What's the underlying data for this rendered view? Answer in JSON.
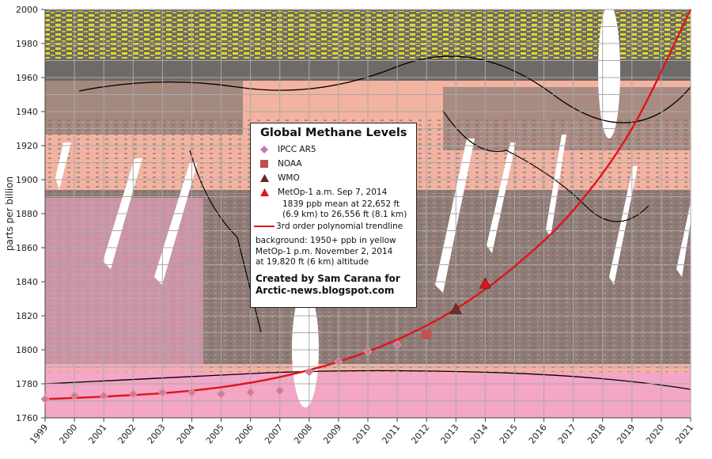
{
  "chart_data": {
    "type": "scatter",
    "title": "Global Methane Levels",
    "xlabel": "",
    "ylabel": "parts per billion",
    "xlim": [
      1999,
      2021
    ],
    "ylim": [
      1760,
      2000
    ],
    "x_ticks": [
      "1999",
      "2000",
      "2001",
      "2002",
      "2003",
      "2004",
      "2005",
      "2006",
      "2007",
      "2008",
      "2009",
      "2010",
      "2011",
      "2012",
      "2013",
      "2014",
      "2015",
      "2016",
      "2017",
      "2018",
      "2019",
      "2020",
      "2021"
    ],
    "y_ticks": [
      "1760",
      "1780",
      "1800",
      "1820",
      "1840",
      "1860",
      "1880",
      "1900",
      "1920",
      "1940",
      "1960",
      "1980",
      "2000"
    ],
    "grid": true,
    "legend_position": "center-left overlay box",
    "series": [
      {
        "name": "IPCC AR5",
        "marker": "diamond",
        "color": "#c07ab8",
        "x": [
          1999,
          2000,
          2001,
          2002,
          2003,
          2004,
          2005,
          2006,
          2007,
          2008,
          2009,
          2010,
          2011
        ],
        "y": [
          1771,
          1773,
          1773,
          1774,
          1775,
          1775,
          1774,
          1775,
          1776,
          1787,
          1793,
          1799,
          1803
        ]
      },
      {
        "name": "NOAA",
        "marker": "square",
        "color": "#c0504d",
        "x": [
          2012
        ],
        "y": [
          1809
        ]
      },
      {
        "name": "WMO",
        "marker": "triangle",
        "color": "#7a2a2a",
        "x": [
          2013
        ],
        "y": [
          1824
        ]
      },
      {
        "name": "MetOp-1 a.m. Sep 7, 2014",
        "marker": "triangle",
        "color": "#e0141c",
        "x": [
          2014
        ],
        "y": [
          1839
        ]
      },
      {
        "name": "3rd order polynomial trendline",
        "type": "line",
        "color": "#e0141c",
        "x": [
          1999,
          2001,
          2003,
          2005,
          2007,
          2009,
          2011,
          2013,
          2015,
          2017,
          2019,
          2021
        ],
        "y": [
          1771,
          1772.5,
          1774.5,
          1778,
          1784,
          1793,
          1806,
          1824,
          1849,
          1882,
          1930,
          2000
        ]
      }
    ],
    "annotations": [
      "1839 ppb mean at 22,652 ft (6.9 km) to 26,556 ft (8.1 km)",
      "background: 1950+ ppb in yellow",
      "MetOp-1 p.m. November 2, 2014",
      "at 19,820 ft (6 km) altitude",
      "Created by Sam Carana for Arctic-news.blogspot.com"
    ]
  },
  "legend": {
    "title": "Global Methane Levels",
    "items": [
      {
        "label": "IPCC AR5"
      },
      {
        "label": "NOAA"
      },
      {
        "label": "WMO"
      },
      {
        "label": "MetOp-1 a.m. Sep 7, 2014"
      }
    ],
    "metop_detail_1": "1839 ppb mean at 22,652 ft",
    "metop_detail_2": "(6.9 km) to 26,556 ft (8.1 km)",
    "trendline_label": "3rd order polynomial trendline",
    "background_note_1": "background: 1950+ ppb in yellow",
    "background_note_2": "MetOp-1 p.m. November 2, 2014",
    "background_note_3": "at 19,820 ft (6 km) altitude",
    "credit_1": "Created by Sam Carana for",
    "credit_2": "Arctic-news.blogspot.com"
  },
  "colors": {
    "map_gray": "#6e6a68",
    "map_salmon": "#f2b3a0",
    "map_pink": "#f3a6c6",
    "map_yellow": "#f5ee1a",
    "swath_white": "#ffffff",
    "grid": "#a9a9a9",
    "trend": "#e0141c"
  }
}
